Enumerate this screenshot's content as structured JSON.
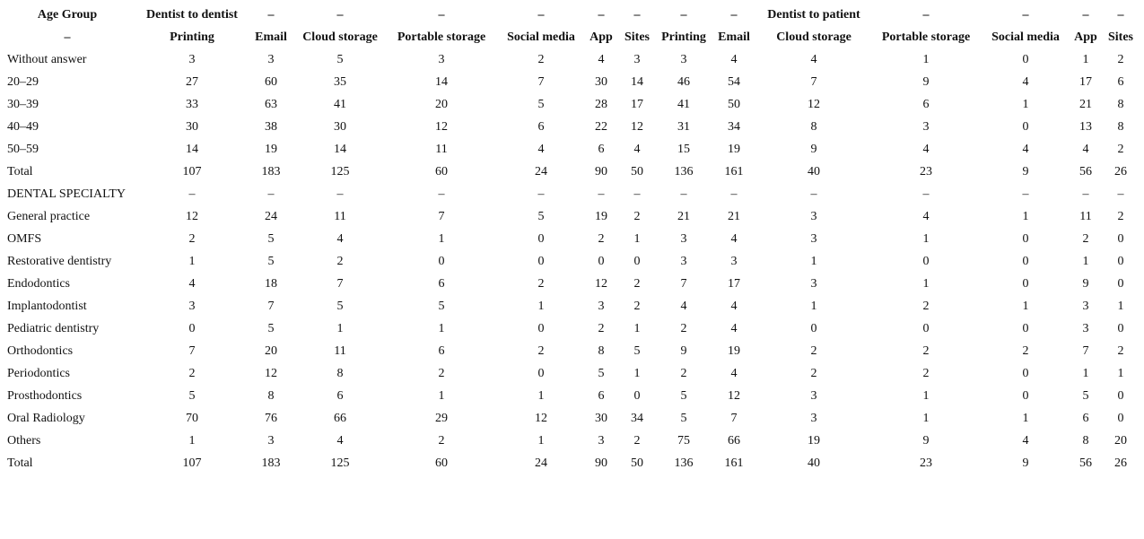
{
  "table": {
    "header": [
      [
        "Age Group",
        "Dentist to dentist",
        "–",
        "–",
        "–",
        "–",
        "–",
        "–",
        "–",
        "–",
        "Dentist to patient",
        "–",
        "–",
        "–",
        "–"
      ],
      [
        "–",
        "Printing",
        "Email",
        "Cloud storage",
        "Portable storage",
        "Social media",
        "App",
        "Sites",
        "Printing",
        "Email",
        "Cloud storage",
        "Portable storage",
        "Social media",
        "App",
        "Sites"
      ]
    ],
    "rows": [
      [
        "Without answer",
        3,
        3,
        5,
        3,
        2,
        4,
        3,
        3,
        4,
        4,
        1,
        0,
        1,
        2
      ],
      [
        "20–29",
        27,
        60,
        35,
        14,
        7,
        30,
        14,
        46,
        54,
        7,
        9,
        4,
        17,
        6
      ],
      [
        "30–39",
        33,
        63,
        41,
        20,
        5,
        28,
        17,
        41,
        50,
        12,
        6,
        1,
        21,
        8
      ],
      [
        "40–49",
        30,
        38,
        30,
        12,
        6,
        22,
        12,
        31,
        34,
        8,
        3,
        0,
        13,
        8
      ],
      [
        "50–59",
        14,
        19,
        14,
        11,
        4,
        6,
        4,
        15,
        19,
        9,
        4,
        4,
        4,
        2
      ],
      [
        "Total",
        107,
        183,
        125,
        60,
        24,
        90,
        50,
        136,
        161,
        40,
        23,
        9,
        56,
        26
      ],
      [
        "DENTAL SPECIALTY",
        "–",
        "–",
        "–",
        "–",
        "–",
        "–",
        "–",
        "–",
        "–",
        "–",
        "–",
        "–",
        "–",
        "–"
      ],
      [
        "General practice",
        12,
        24,
        11,
        7,
        5,
        19,
        2,
        21,
        21,
        3,
        4,
        1,
        11,
        2
      ],
      [
        "OMFS",
        2,
        5,
        4,
        1,
        0,
        2,
        1,
        3,
        4,
        3,
        1,
        0,
        2,
        0
      ],
      [
        "Restorative dentistry",
        1,
        5,
        2,
        0,
        0,
        0,
        0,
        3,
        3,
        1,
        0,
        0,
        1,
        0
      ],
      [
        "Endodontics",
        4,
        18,
        7,
        6,
        2,
        12,
        2,
        7,
        17,
        3,
        1,
        0,
        9,
        0
      ],
      [
        "Implantodontist",
        3,
        7,
        5,
        5,
        1,
        3,
        2,
        4,
        4,
        1,
        2,
        1,
        3,
        1
      ],
      [
        "Pediatric dentistry",
        0,
        5,
        1,
        1,
        0,
        2,
        1,
        2,
        4,
        0,
        0,
        0,
        3,
        0
      ],
      [
        "Orthodontics",
        7,
        20,
        11,
        6,
        2,
        8,
        5,
        9,
        19,
        2,
        2,
        2,
        7,
        2
      ],
      [
        "Periodontics",
        2,
        12,
        8,
        2,
        0,
        5,
        1,
        2,
        4,
        2,
        2,
        0,
        1,
        1
      ],
      [
        "Prosthodontics",
        5,
        8,
        6,
        1,
        1,
        6,
        0,
        5,
        12,
        3,
        1,
        0,
        5,
        0
      ],
      [
        "Oral Radiology",
        70,
        76,
        66,
        29,
        12,
        30,
        34,
        5,
        7,
        3,
        1,
        1,
        6,
        0
      ],
      [
        "Others",
        1,
        3,
        4,
        2,
        1,
        3,
        2,
        75,
        66,
        19,
        9,
        4,
        8,
        20
      ],
      [
        "Total",
        107,
        183,
        125,
        60,
        24,
        90,
        50,
        136,
        161,
        40,
        23,
        9,
        56,
        26
      ]
    ]
  }
}
